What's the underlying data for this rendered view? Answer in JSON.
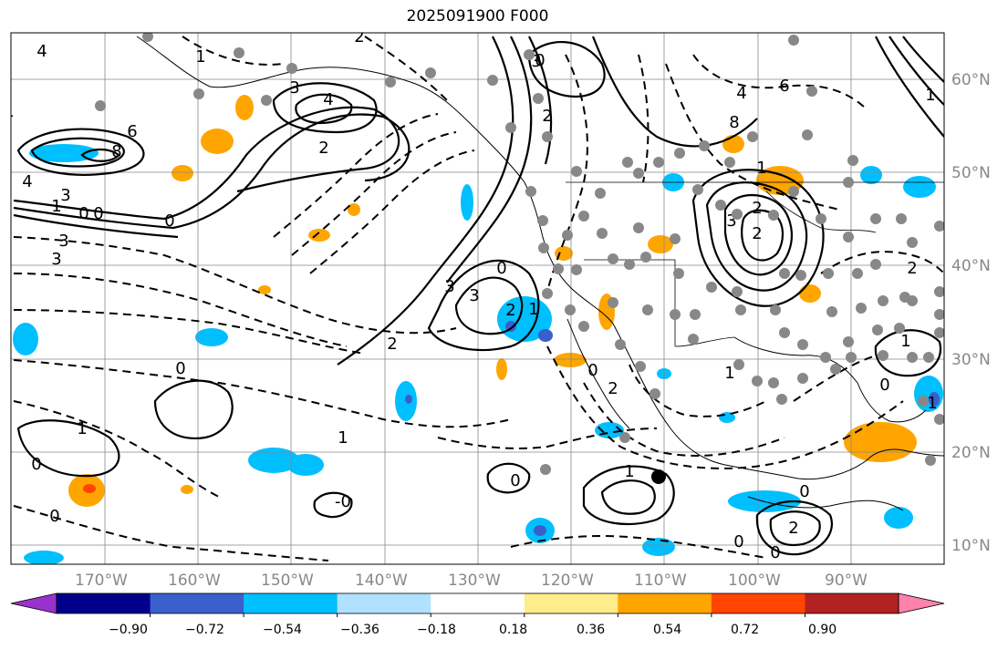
{
  "title": "2025091900 F000",
  "map": {
    "lon_labels": [
      "170°W",
      "160°W",
      "150°W",
      "140°W",
      "130°W",
      "120°W",
      "110°W",
      "100°W",
      "90°W"
    ],
    "lat_labels": [
      "60°N",
      "50°N",
      "40°N",
      "30°N",
      "20°N",
      "10°N"
    ],
    "contour_labels": [
      "4",
      "1",
      "2",
      "3",
      "4",
      "8",
      "6",
      "3",
      "2",
      "4",
      "3",
      "1",
      "0",
      "0",
      "0",
      "1",
      "3",
      "4",
      "2",
      "8",
      "6",
      "0",
      "1",
      "2",
      "3",
      "2",
      "0",
      "3",
      "2",
      "1",
      "2",
      "3",
      "0",
      "3",
      "1",
      "0",
      "1",
      "0",
      "1",
      "0",
      "1",
      "2",
      "1",
      "0",
      "1",
      "0",
      "2",
      "1",
      "0",
      "0",
      "2",
      "0",
      "-0"
    ]
  },
  "colorbar": {
    "tick_labels": [
      "−0.90",
      "−0.72",
      "−0.54",
      "−0.36",
      "−0.18",
      "0.18",
      "0.36",
      "0.54",
      "0.72",
      "0.90"
    ],
    "colors": [
      "#9932cc",
      "#00008b",
      "#3a5fcd",
      "#00bfff",
      "#b0e2ff",
      "#ffffff",
      "#ffec8b",
      "#ffa500",
      "#ff4500",
      "#b22222",
      "#ff82ab"
    ]
  },
  "colors": {
    "grid": "#888888",
    "contour": "#000000",
    "station": "#888888"
  }
}
